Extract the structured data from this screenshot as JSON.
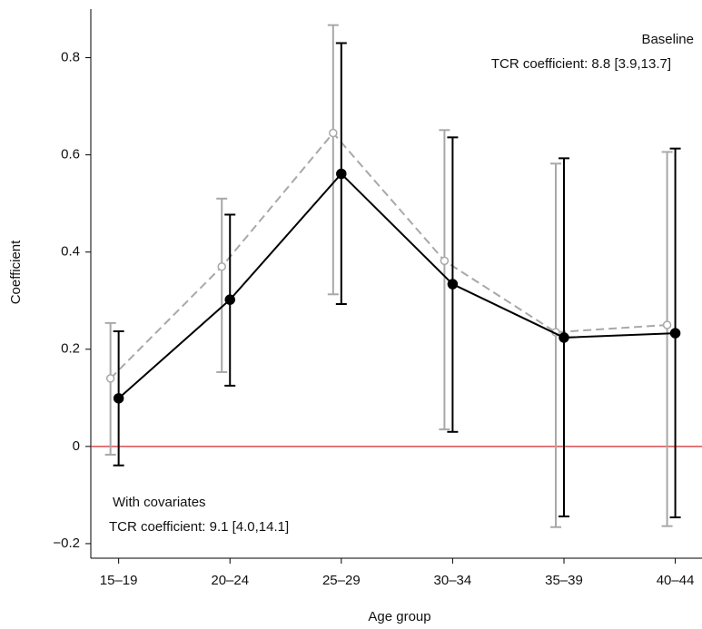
{
  "chart_data": {
    "type": "line",
    "x_label": "Age group",
    "y_label": "Coefficient",
    "categories": [
      "15–19",
      "20–24",
      "25–29",
      "30–34",
      "35–39",
      "40–44"
    ],
    "ylim": [
      -0.23,
      0.9
    ],
    "yticks": [
      {
        "value": -0.2,
        "label": "−0.2"
      },
      0,
      0.2,
      0.4,
      0.6,
      0.8
    ],
    "reference_line": {
      "value": 0,
      "color": "#d62728"
    },
    "series": [
      {
        "name": "Baseline",
        "color": "#a8a8a8",
        "dashed": true,
        "marker": "open",
        "values": [
          0.14,
          0.37,
          0.645,
          0.382,
          0.235,
          0.25
        ],
        "lower": [
          -0.017,
          0.153,
          0.313,
          0.035,
          -0.166,
          -0.164
        ],
        "upper": [
          0.254,
          0.51,
          0.867,
          0.651,
          0.582,
          0.606
        ],
        "annotation": "TCR coefficient: 8.8 [3.9,13.7]"
      },
      {
        "name": "With covariates",
        "color": "#000000",
        "dashed": false,
        "marker": "filled",
        "values": [
          0.099,
          0.302,
          0.561,
          0.334,
          0.224,
          0.233
        ],
        "lower": [
          -0.039,
          0.125,
          0.293,
          0.03,
          -0.144,
          -0.146
        ],
        "upper": [
          0.237,
          0.477,
          0.83,
          0.636,
          0.593,
          0.613
        ],
        "annotation": "TCR coefficient: 9.1 [4.0,14.1]"
      }
    ]
  }
}
